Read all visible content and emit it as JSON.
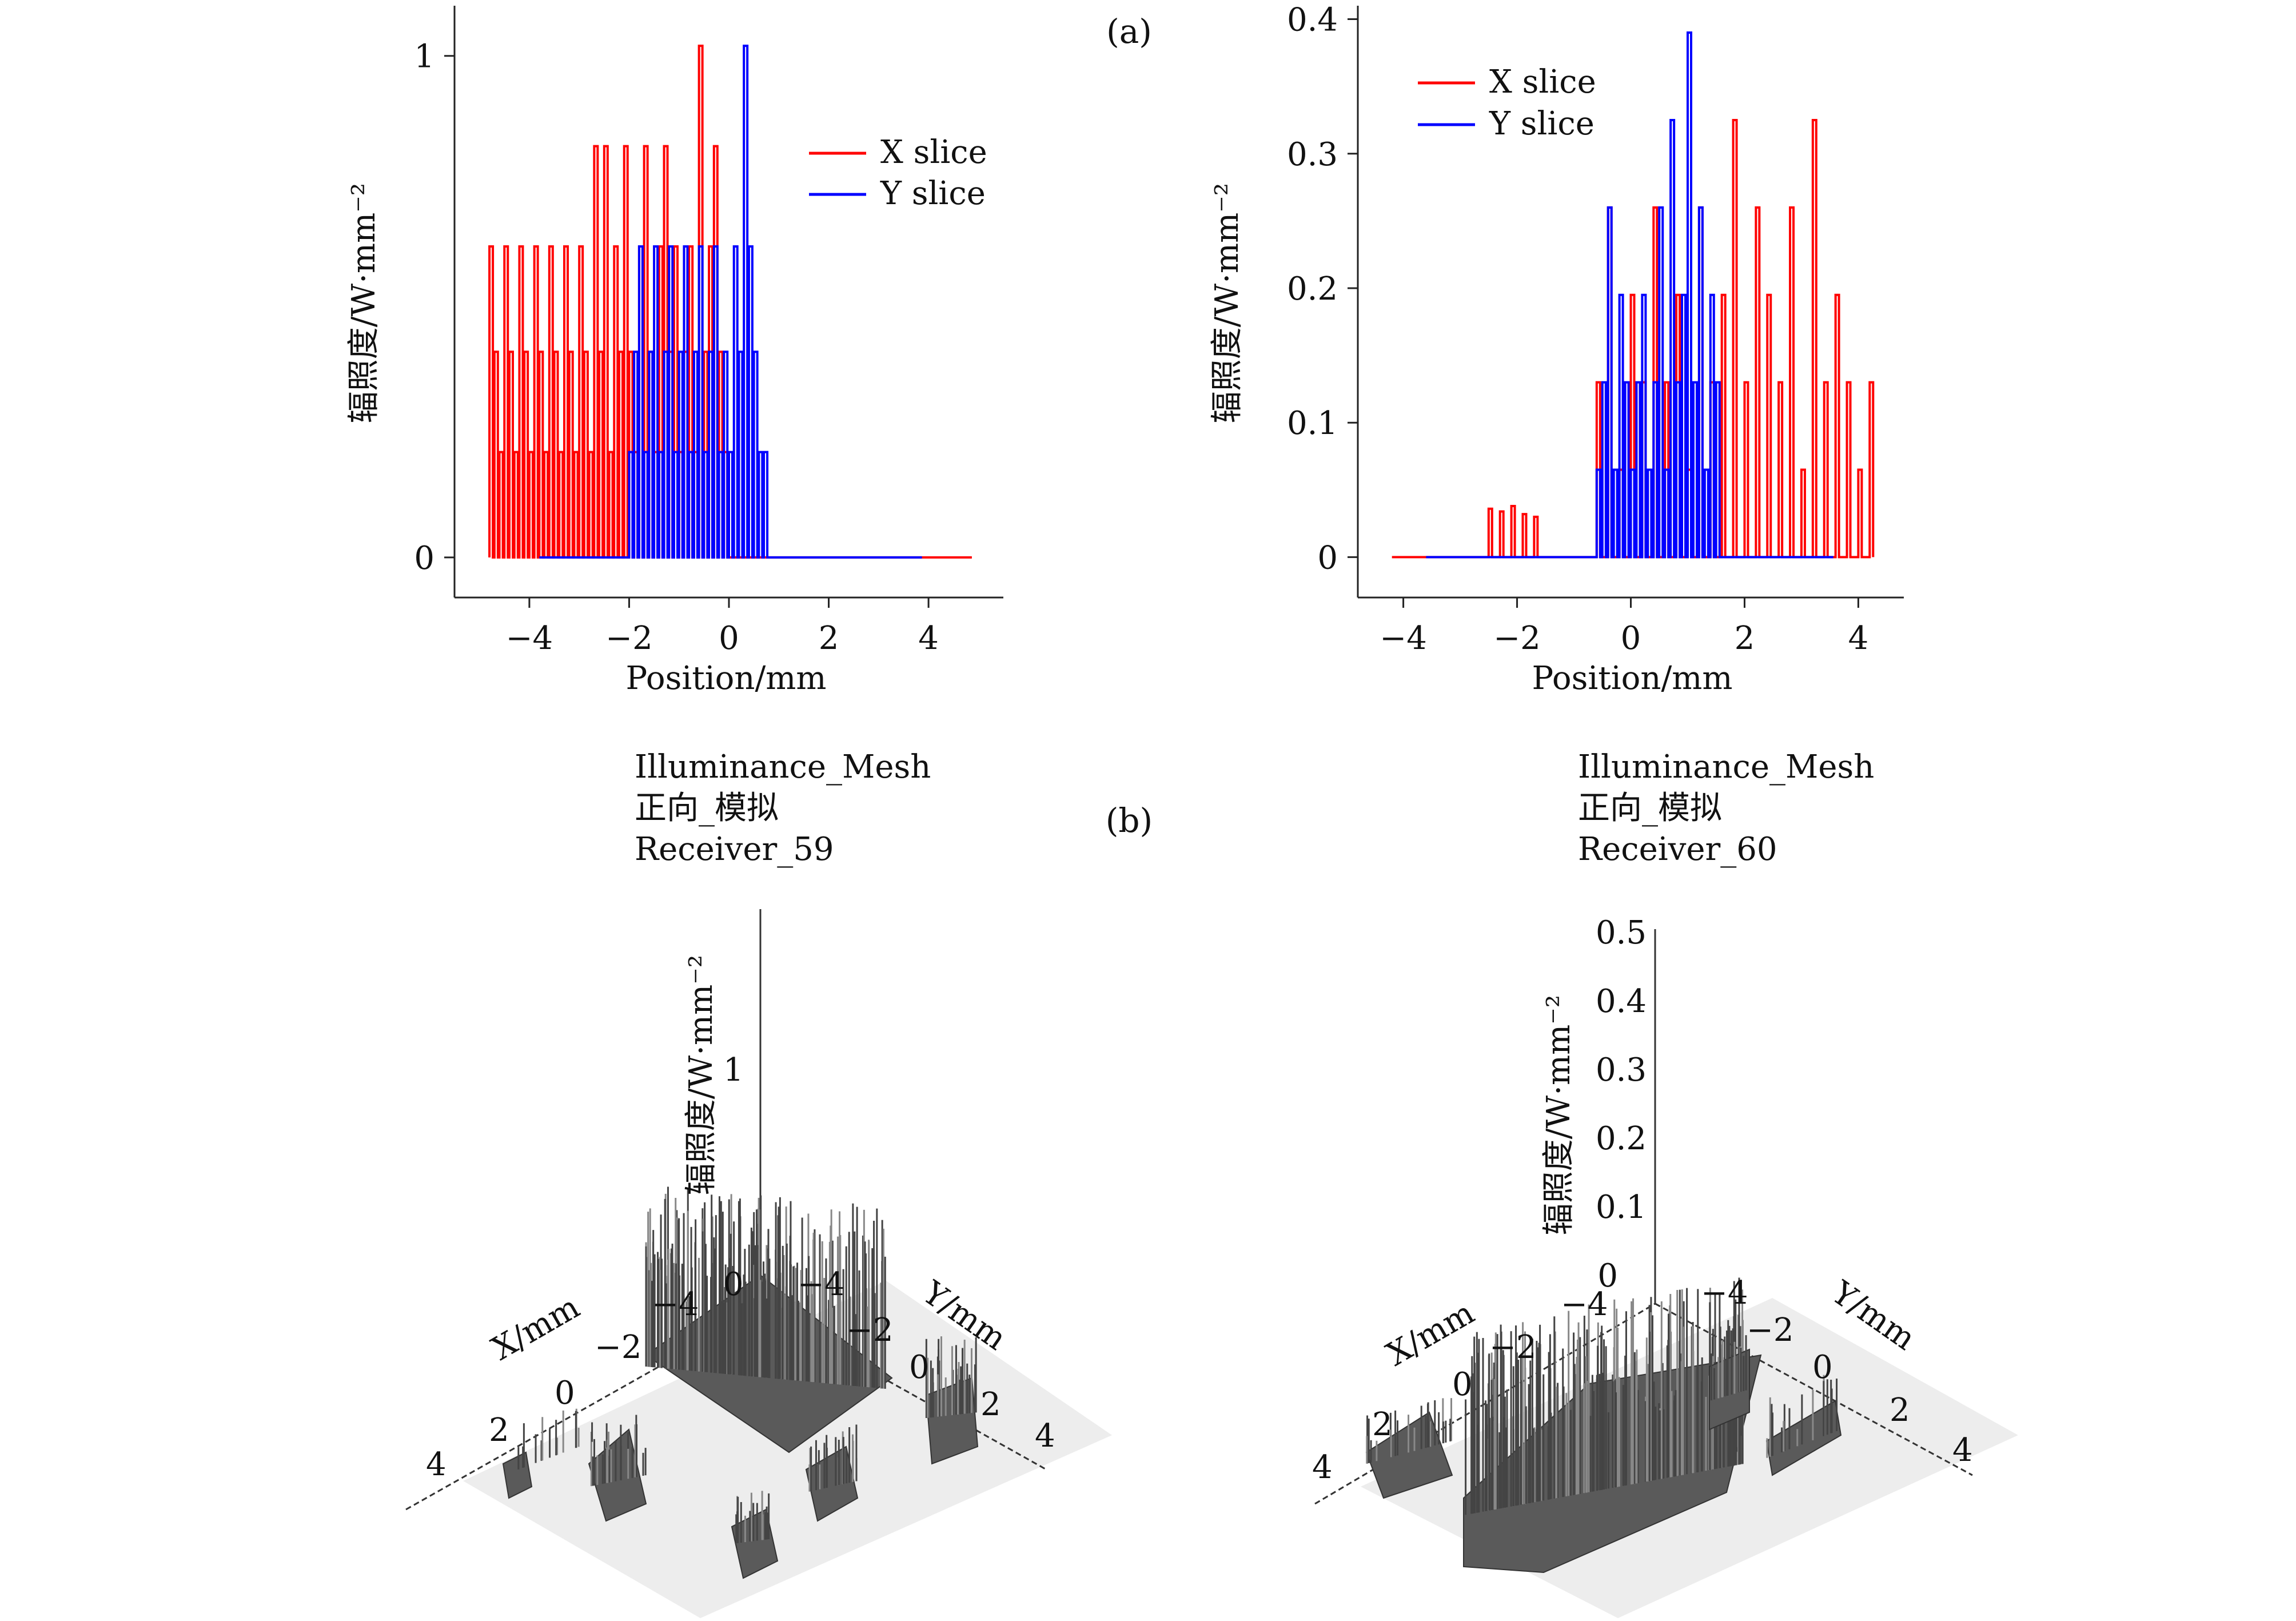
{
  "panels": {
    "a": "(a)",
    "b": "(b)"
  },
  "chart_data": [
    {
      "id": "a-left",
      "type": "line",
      "xlabel": "Position/mm",
      "ylabel": "辐照度/W·mm⁻²",
      "xticks": [
        "−4",
        "−2",
        "0",
        "2",
        "4"
      ],
      "xtick_values": [
        -4,
        -2,
        0,
        2,
        4
      ],
      "yticks": [
        "0",
        "1"
      ],
      "ytick_values": [
        0,
        1
      ],
      "xlim": [
        -5.5,
        5.5
      ],
      "ylim": [
        -0.08,
        1.1
      ],
      "legend": "upper-right",
      "grid": false,
      "series": [
        {
          "name": "X slice",
          "color": "#ff0000",
          "x": [
            -4.8,
            -4.7,
            -4.6,
            -4.5,
            -4.4,
            -4.3,
            -4.2,
            -4.1,
            -4.0,
            -3.9,
            -3.8,
            -3.7,
            -3.6,
            -3.5,
            -3.4,
            -3.3,
            -3.2,
            -3.1,
            -3.0,
            -2.9,
            -2.8,
            -2.7,
            -2.6,
            -2.5,
            -2.4,
            -2.3,
            -2.2,
            -2.1,
            -2.0,
            -1.9,
            -1.8,
            -1.7,
            -1.6,
            -1.5,
            -1.4,
            -1.3,
            -1.2,
            -1.1,
            -1.0,
            -0.9,
            -0.8,
            -0.7,
            -0.6,
            -0.5,
            -0.4,
            -0.3,
            -0.2,
            -0.1,
            0.0,
            0.2,
            0.5,
            1.0,
            2.0,
            3.0,
            4.0,
            4.8
          ],
          "values": [
            0.62,
            0.41,
            0.21,
            0.62,
            0.41,
            0.21,
            0.62,
            0.41,
            0.21,
            0.62,
            0.41,
            0.21,
            0.62,
            0.41,
            0.21,
            0.62,
            0.41,
            0.21,
            0.62,
            0.41,
            0.21,
            0.82,
            0.41,
            0.82,
            0.21,
            0.62,
            0.41,
            0.82,
            0.41,
            0.21,
            0.62,
            0.82,
            0.41,
            0.21,
            0.62,
            0.82,
            0.41,
            0.62,
            0.21,
            0.41,
            0.62,
            0.21,
            1.02,
            0.41,
            0.62,
            0.82,
            0.41,
            0.21,
            0.0,
            0.0,
            0.0,
            0.0,
            0.0,
            0.0,
            0.0,
            0.0
          ]
        },
        {
          "name": "Y slice",
          "color": "#0000ff",
          "x": [
            -3.8,
            -3.0,
            -2.0,
            -1.9,
            -1.8,
            -1.7,
            -1.6,
            -1.5,
            -1.4,
            -1.3,
            -1.2,
            -1.1,
            -1.0,
            -0.9,
            -0.8,
            -0.7,
            -0.6,
            -0.5,
            -0.4,
            -0.3,
            -0.2,
            -0.1,
            0.0,
            0.1,
            0.2,
            0.3,
            0.4,
            0.5,
            0.6,
            0.7,
            1.0,
            2.0,
            3.0,
            3.8
          ],
          "values": [
            0.0,
            0.0,
            0.21,
            0.41,
            0.62,
            0.21,
            0.41,
            0.62,
            0.21,
            0.41,
            0.62,
            0.21,
            0.41,
            0.62,
            0.21,
            0.41,
            0.62,
            0.21,
            0.41,
            0.62,
            0.21,
            0.41,
            0.21,
            0.62,
            0.41,
            1.02,
            0.62,
            0.41,
            0.21,
            0.21,
            0.0,
            0.0,
            0.0,
            0.0
          ]
        }
      ]
    },
    {
      "id": "a-right",
      "type": "line",
      "xlabel": "Position/mm",
      "ylabel": "辐照度/W·mm⁻²",
      "xticks": [
        "−4",
        "−2",
        "0",
        "2",
        "4"
      ],
      "xtick_values": [
        -4,
        -2,
        0,
        2,
        4
      ],
      "yticks": [
        "0",
        "0.1",
        "0.2",
        "0.3",
        "0.4"
      ],
      "ytick_values": [
        0,
        0.1,
        0.2,
        0.3,
        0.4
      ],
      "xlim": [
        -4.8,
        4.8
      ],
      "ylim": [
        -0.03,
        0.41
      ],
      "legend": "upper-left",
      "grid": false,
      "series": [
        {
          "name": "X slice",
          "color": "#ff0000",
          "x": [
            -4.2,
            -3.0,
            -2.6,
            -2.5,
            -2.4,
            -2.3,
            -2.2,
            -2.1,
            -2.0,
            -1.9,
            -1.8,
            -1.7,
            -1.6,
            -1.5,
            -1.0,
            -0.6,
            -0.4,
            -0.2,
            0.0,
            0.2,
            0.4,
            0.6,
            0.8,
            1.0,
            1.2,
            1.4,
            1.6,
            1.8,
            2.0,
            2.2,
            2.4,
            2.6,
            2.8,
            3.0,
            3.2,
            3.4,
            3.6,
            3.8,
            4.0,
            4.2
          ],
          "values": [
            0.0,
            0.0,
            0.0,
            0.036,
            0.0,
            0.034,
            0.0,
            0.038,
            0.0,
            0.032,
            0.0,
            0.03,
            0.0,
            0.0,
            0.0,
            0.13,
            0.26,
            0.065,
            0.195,
            0.13,
            0.26,
            0.13,
            0.195,
            0.065,
            0.26,
            0.13,
            0.195,
            0.325,
            0.13,
            0.26,
            0.195,
            0.13,
            0.26,
            0.065,
            0.325,
            0.13,
            0.195,
            0.13,
            0.065,
            0.13
          ]
        },
        {
          "name": "Y slice",
          "color": "#0000ff",
          "x": [
            -3.6,
            -1.0,
            -0.6,
            -0.5,
            -0.4,
            -0.3,
            -0.2,
            -0.1,
            0.0,
            0.1,
            0.2,
            0.3,
            0.4,
            0.5,
            0.6,
            0.7,
            0.8,
            0.9,
            1.0,
            1.1,
            1.2,
            1.3,
            1.4,
            1.5,
            1.6,
            2.0,
            3.0,
            3.5
          ],
          "values": [
            0.0,
            0.0,
            0.065,
            0.13,
            0.26,
            0.065,
            0.195,
            0.13,
            0.065,
            0.13,
            0.195,
            0.065,
            0.13,
            0.26,
            0.065,
            0.325,
            0.13,
            0.195,
            0.39,
            0.13,
            0.26,
            0.065,
            0.195,
            0.13,
            0.0,
            0.0,
            0.0,
            0.0
          ]
        }
      ]
    },
    {
      "id": "b-left",
      "type": "heatmap",
      "titles": [
        "Illuminance_Mesh",
        "正向_模拟",
        "Receiver_59"
      ],
      "xlabel": "X/mm",
      "ylabel": "Y/mm",
      "zlabel": "辐照度/W·mm⁻²",
      "x_ticks": [
        "−4",
        "−2",
        "0",
        "2",
        "4"
      ],
      "y_ticks": [
        "−4",
        "−2",
        "0",
        "2",
        "4"
      ],
      "z_ticks": [
        "0",
        "1"
      ],
      "zlim": [
        0,
        1.7
      ]
    },
    {
      "id": "b-right",
      "type": "heatmap",
      "titles": [
        "Illuminance_Mesh",
        "正向_模拟",
        "Receiver_60"
      ],
      "xlabel": "X/mm",
      "ylabel": "Y/mm",
      "zlabel": "辐照度/W·mm⁻²",
      "x_ticks": [
        "−4",
        "−2",
        "0",
        "2",
        "4"
      ],
      "y_ticks": [
        "−4",
        "−2",
        "0",
        "2",
        "4"
      ],
      "z_ticks": [
        "0",
        "0.1",
        "0.2",
        "0.3",
        "0.4",
        "0.5"
      ],
      "zlim": [
        0,
        0.55
      ]
    }
  ]
}
